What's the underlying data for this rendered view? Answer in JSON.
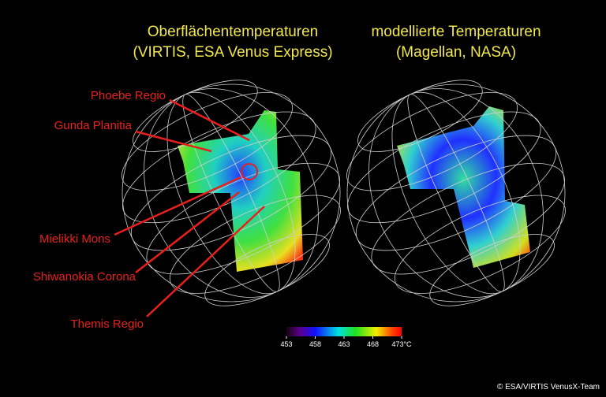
{
  "titles": {
    "left": [
      "Oberflächentemperaturen",
      "(VIRTIS, ESA Venus Express)"
    ],
    "right": [
      "modellierte Temperaturen",
      "(Magellan, NASA)"
    ]
  },
  "labels": [
    "Phoebe Regio",
    "Gunda Planitia",
    "Mielikki Mons",
    "Shiwanokia Corona",
    "Themis Regio"
  ],
  "colorbar": {
    "range": [
      453,
      473
    ],
    "ticks": [
      453,
      458,
      463,
      468,
      {
        "value": 473,
        "label": "473°C"
      }
    ]
  },
  "credit": "© ESA/VIRTIS VenusX-Team"
}
